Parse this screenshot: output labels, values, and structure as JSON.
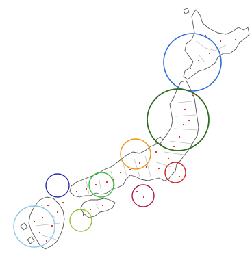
{
  "map": {
    "background": "#ffffff",
    "land_fill": "#ffffff",
    "coast_color": "#555555",
    "border_color": "#bdbdbd",
    "dot_color": "#cc2222"
  },
  "clusters": [
    {
      "id": "hokkaido",
      "color": "#2f6fd6",
      "stroke": 1.6
    },
    {
      "id": "tohoku",
      "color": "#2e6b1f",
      "stroke": 1.8
    },
    {
      "id": "kanto",
      "color": "#e89a1c",
      "stroke": 1.4
    },
    {
      "id": "chubu-coast",
      "color": "#d42020",
      "stroke": 1.4
    },
    {
      "id": "kansai",
      "color": "#b0124a",
      "stroke": 1.4
    },
    {
      "id": "chugoku",
      "color": "#3dbb3d",
      "stroke": 1.4
    },
    {
      "id": "kitakyushu",
      "color": "#2a2aa8",
      "stroke": 1.4
    },
    {
      "id": "shikoku",
      "color": "#8fbf2a",
      "stroke": 1.4
    },
    {
      "id": "kyushu",
      "color": "#8fc8e6",
      "stroke": 1.4
    }
  ]
}
